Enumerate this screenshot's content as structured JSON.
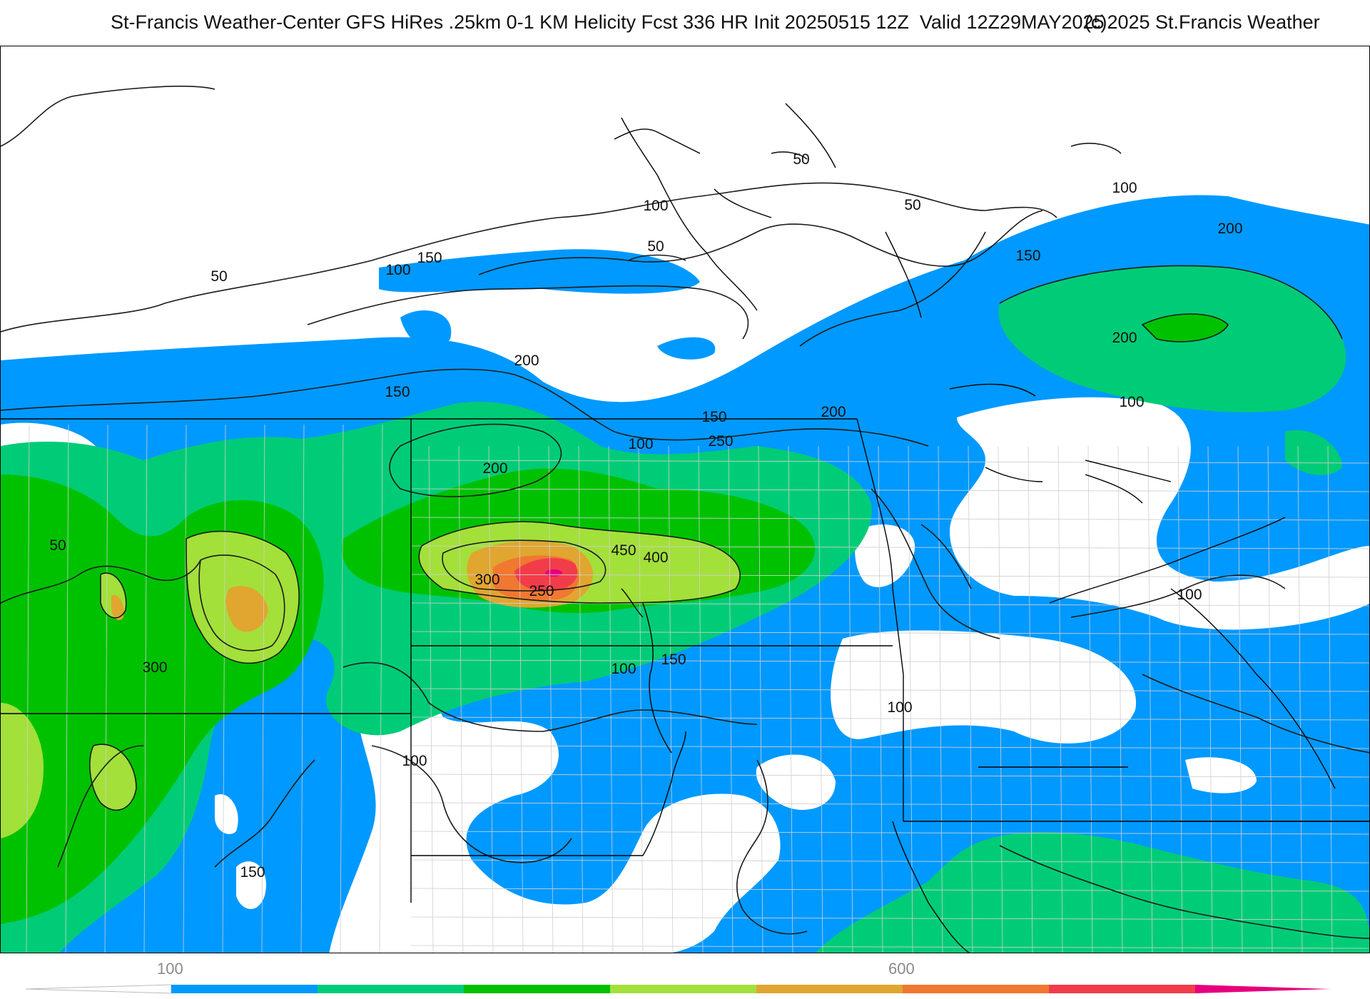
{
  "header": {
    "title": "St-Francis Weather-Center GFS HiRes .25km 0-1 KM Helicity Fcst 336 HR Init 20250515 12Z  Valid 12Z29MAY2025",
    "copyright": "(c)2025 St.Francis Weather"
  },
  "colors": {
    "c100": "#0099ff",
    "c150": "#00cc77",
    "c200": "#00c100",
    "c300": "#a3e03a",
    "c400": "#e0a630",
    "c450": "#f07830",
    "c500": "#f23c4a",
    "c600": "#e6007e",
    "contour": "#1a1a1a",
    "border": "#000000",
    "county": "#cfcfcf"
  },
  "legend": {
    "tick_labels": [
      "100",
      "600"
    ],
    "bins": [
      "#0099ff",
      "#00cc77",
      "#00c100",
      "#a3e03a",
      "#e0a630",
      "#f07830",
      "#f23c4a",
      "#e6007e"
    ]
  },
  "contour_labels": [
    "50",
    "50",
    "50",
    "50",
    "50",
    "100",
    "100",
    "100",
    "100",
    "100",
    "100",
    "100",
    "100",
    "100",
    "150",
    "150",
    "150",
    "150",
    "150",
    "150",
    "200",
    "200",
    "200",
    "200",
    "200",
    "250",
    "250",
    "300",
    "300",
    "400",
    "450"
  ],
  "map": {
    "variable": "0-1 KM Helicity",
    "forecast_hour": "336 HR",
    "init": "20250515 12Z",
    "valid": "12Z29MAY2025"
  }
}
